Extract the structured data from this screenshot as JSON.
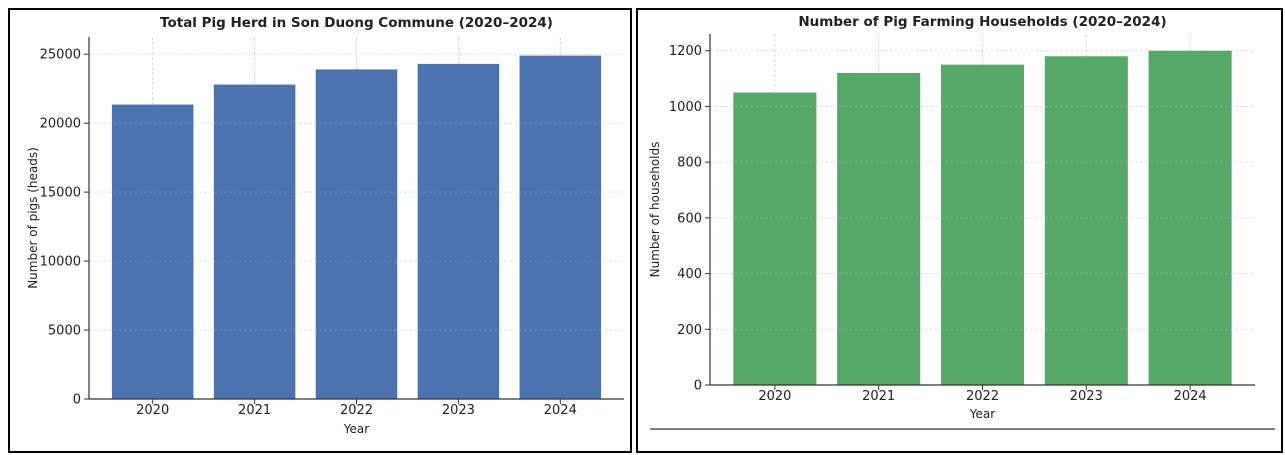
{
  "chart_data": [
    {
      "type": "bar",
      "title": "Total Pig Herd in Son Duong Commune (2020–2024)",
      "xlabel": "Year",
      "ylabel": "Number of pigs (heads)",
      "categories": [
        "2020",
        "2021",
        "2022",
        "2023",
        "2024"
      ],
      "values": [
        21350,
        22800,
        23900,
        24300,
        24900
      ],
      "ylim": [
        0,
        26250
      ],
      "yticks": [
        0,
        5000,
        10000,
        15000,
        20000,
        25000
      ],
      "color": "#4c72b0",
      "grid": true
    },
    {
      "type": "bar",
      "title": "Number of Pig Farming Households (2020–2024)",
      "xlabel": "Year",
      "ylabel": "Number of households",
      "categories": [
        "2020",
        "2021",
        "2022",
        "2023",
        "2024"
      ],
      "values": [
        1050,
        1120,
        1150,
        1180,
        1200
      ],
      "ylim": [
        0,
        1260
      ],
      "yticks": [
        0,
        200,
        400,
        600,
        800,
        1000,
        1200
      ],
      "color": "#55a868",
      "grid": true
    }
  ]
}
